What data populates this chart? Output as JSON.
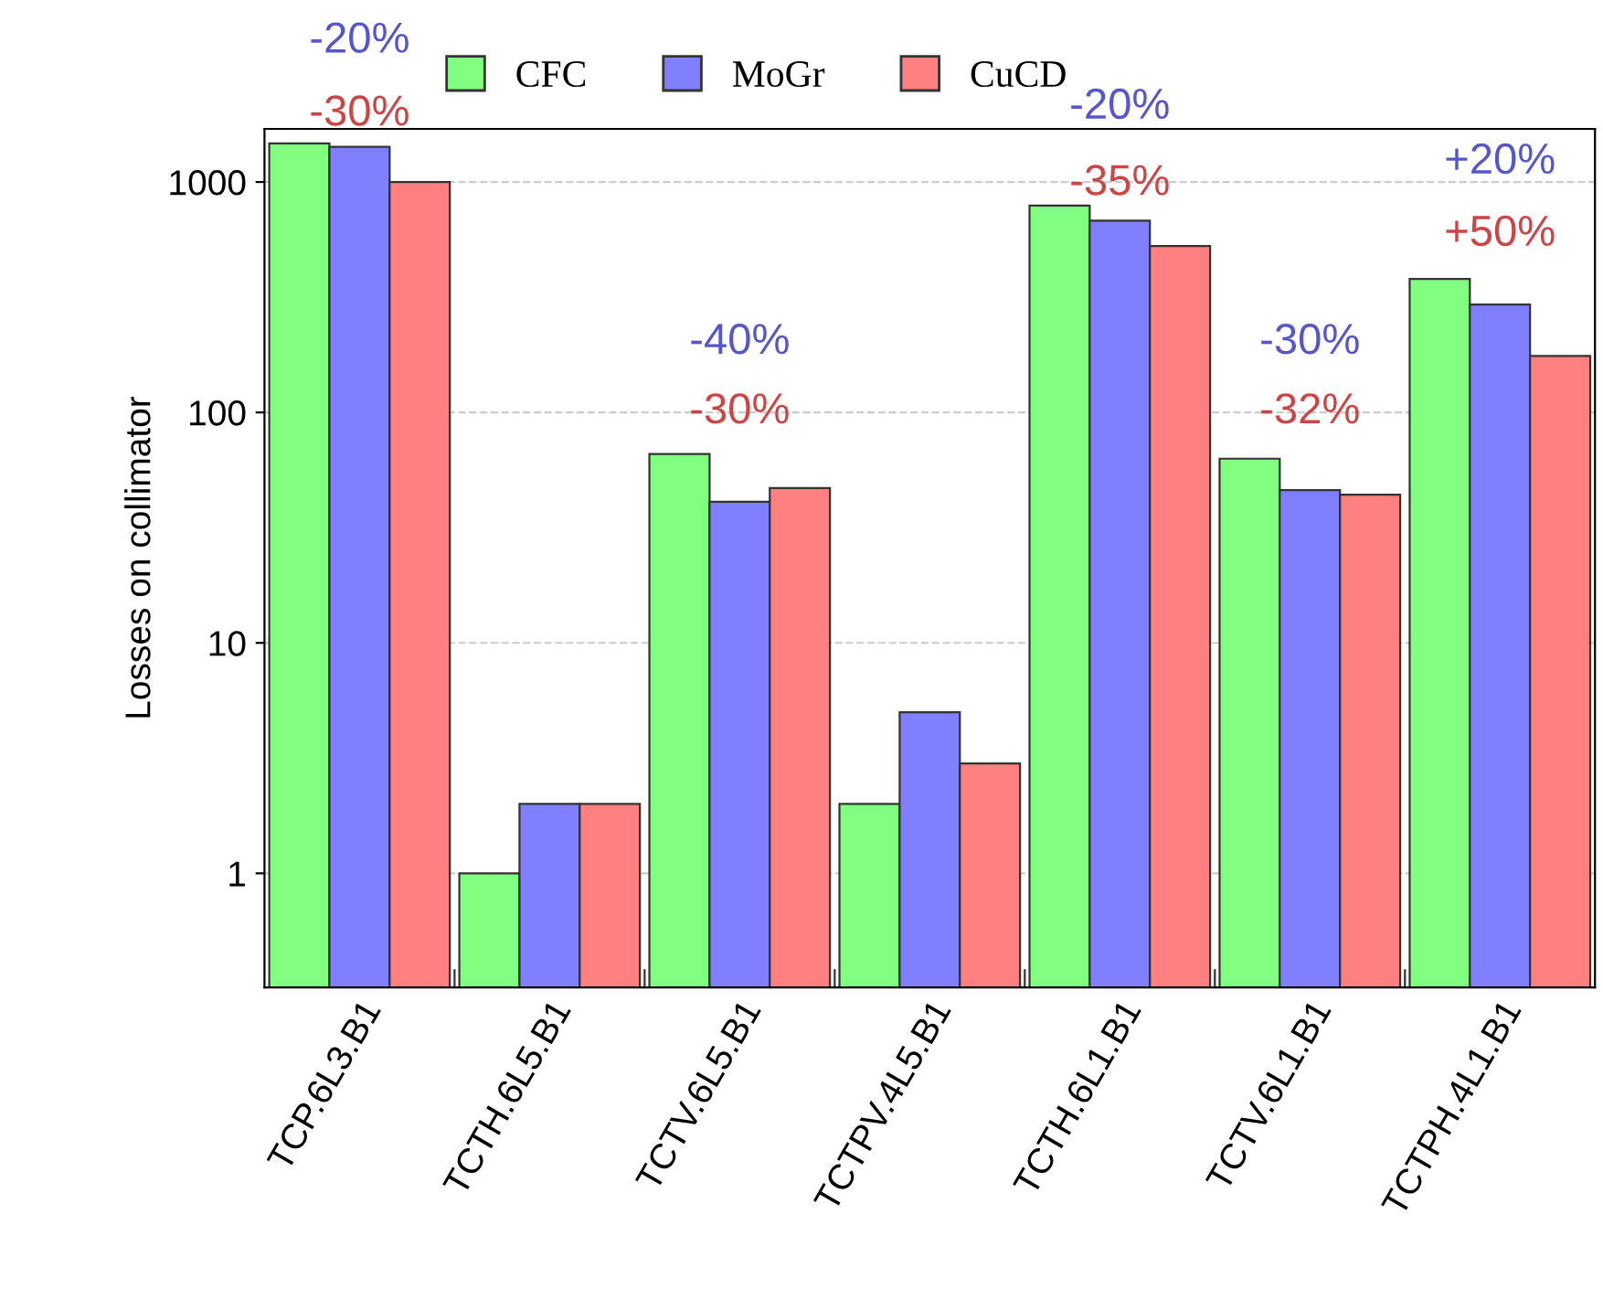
{
  "chart_data": {
    "type": "bar",
    "ylabel": "Losses on collimator",
    "log": true,
    "ylim": [
      0.32,
      1700
    ],
    "yticks": [
      1,
      10,
      100,
      1000
    ],
    "grid": "y",
    "legend": "top",
    "categories": [
      "TCP.6L3.B1",
      "TCTH.6L5.B1",
      "TCTV.6L5.B1",
      "TCTPV.4L5.B1",
      "TCTH.6L1.B1",
      "TCTV.6L1.B1",
      "TCTPH.4L1.B1"
    ],
    "series": [
      {
        "name": "CFC",
        "color": "#80ff80",
        "values": [
          1470,
          1,
          66,
          2,
          790,
          63,
          380
        ]
      },
      {
        "name": "MoGr",
        "color": "#8080ff",
        "values": [
          1420,
          2,
          41,
          5,
          680,
          46,
          294
        ]
      },
      {
        "name": "CuCD",
        "color": "#ff8080",
        "values": [
          1000,
          2,
          47,
          3,
          527,
          44,
          176
        ]
      }
    ],
    "annotations": [
      "-20%",
      "-30%",
      "-40%",
      "-30%",
      "-20%",
      "-35%",
      "-30%",
      "-32%",
      "+20%",
      "+50%"
    ]
  }
}
